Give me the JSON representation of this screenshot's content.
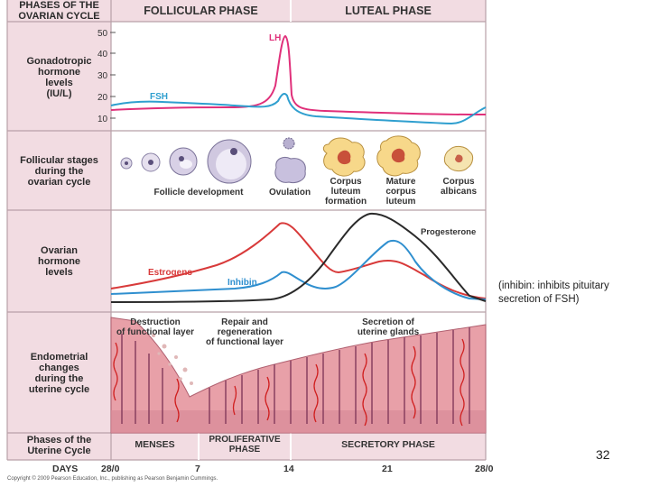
{
  "header": {
    "title_line1": "PHASES OF THE",
    "title_line2": "OVARIAN CYCLE",
    "follicular": "FOLLICULAR PHASE",
    "luteal": "LUTEAL PHASE"
  },
  "rows": {
    "gonadotropic": [
      "Gonadotropic",
      "hormone",
      "levels",
      "(IU/L)"
    ],
    "follicular_stages": [
      "Follicular stages",
      "during the",
      "ovarian cycle"
    ],
    "ovarian_hormones": [
      "Ovarian",
      "hormone",
      "levels"
    ],
    "endometrial": [
      "Endometrial",
      "changes",
      "during the",
      "uterine cycle"
    ],
    "uterine_phases": [
      "Phases of the",
      "Uterine Cycle"
    ]
  },
  "gonadotropic_chart": {
    "y_ticks": [
      "50",
      "40",
      "30",
      "20",
      "10"
    ],
    "lh_label": "LH",
    "fsh_label": "FSH"
  },
  "follicle_labels": {
    "development": "Follicle development",
    "ovulation": "Ovulation",
    "corpus_formation": [
      "Corpus",
      "luteum",
      "formation"
    ],
    "mature_corpus": [
      "Mature",
      "corpus",
      "luteum"
    ],
    "albicans": [
      "Corpus",
      "albicans"
    ]
  },
  "ovarian_chart": {
    "estrogens_label": "Estrogens",
    "inhibin_label": "Inhibin",
    "progesterone_label": "Progesterone"
  },
  "endometrium_labels": {
    "destruction": [
      "Destruction",
      "of functional layer"
    ],
    "repair": [
      "Repair and",
      "regeneration",
      "of functional layer"
    ],
    "secretion": [
      "Secretion of",
      "uterine glands"
    ]
  },
  "uterine_phases": {
    "menses": "MENSES",
    "proliferative": [
      "PROLIFERATIVE",
      "PHASE"
    ],
    "secretory": "SECRETORY PHASE"
  },
  "days": {
    "label": "DAYS",
    "ticks": [
      "28/0",
      "7",
      "14",
      "21",
      "28/0"
    ]
  },
  "copyright": "Copyright © 2009 Pearson Education, Inc., publishing as Pearson Benjamin Cummings.",
  "side_note": [
    "(inhibin: inhibits pituitary",
    "secretion of FSH)"
  ],
  "slide_number": "32",
  "colors": {
    "panel_pink": "#f2dce2",
    "lh": "#e0307a",
    "fsh": "#2f9fcf",
    "estrogen": "#d83a3a",
    "inhibin": "#2f8fcf",
    "progesterone": "#2a2a2a"
  }
}
